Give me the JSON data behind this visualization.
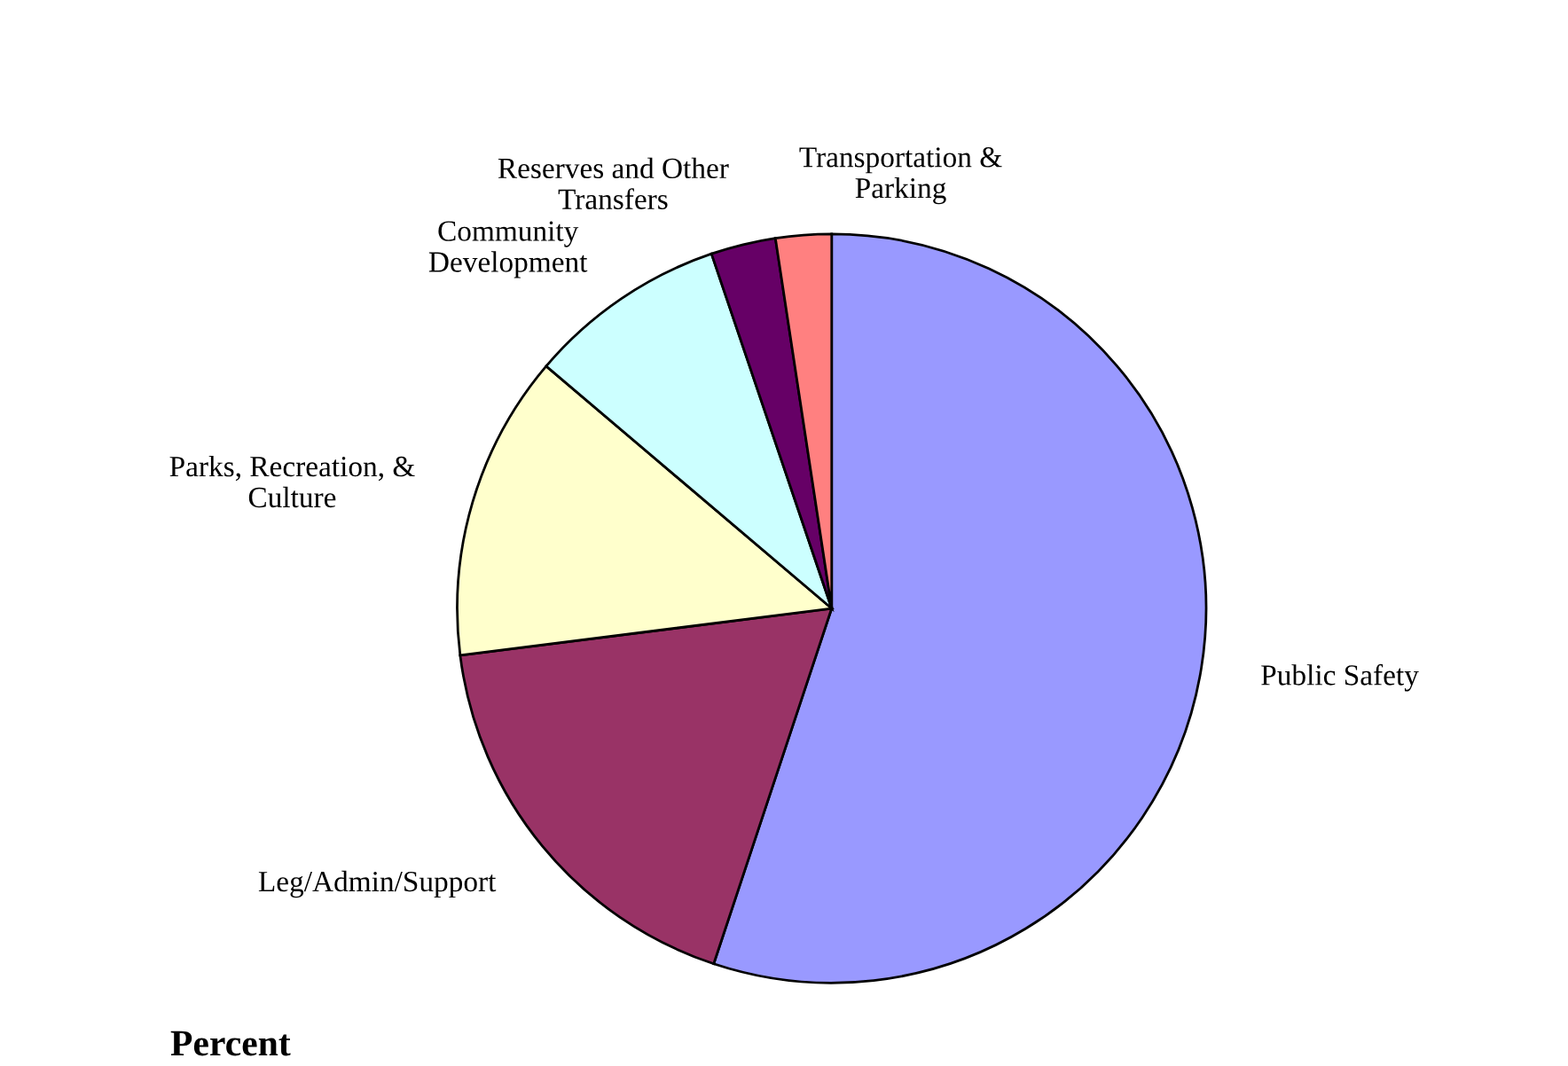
{
  "chart_data": {
    "type": "pie",
    "categories": [
      "Public Safety",
      "Leg/Admin/Support",
      "Parks, Recreation, &\nCulture",
      "Community\nDevelopment",
      "Reserves and Other\nTransfers",
      "Transportation &\nParking"
    ],
    "values": [
      55.1,
      17.9,
      13.2,
      8.6,
      2.8,
      2.4
    ],
    "colors": [
      "#9999ff",
      "#993366",
      "#ffffcc",
      "#ccffff",
      "#660066",
      "#ff8080"
    ],
    "annotations": [
      "Percent"
    ]
  }
}
